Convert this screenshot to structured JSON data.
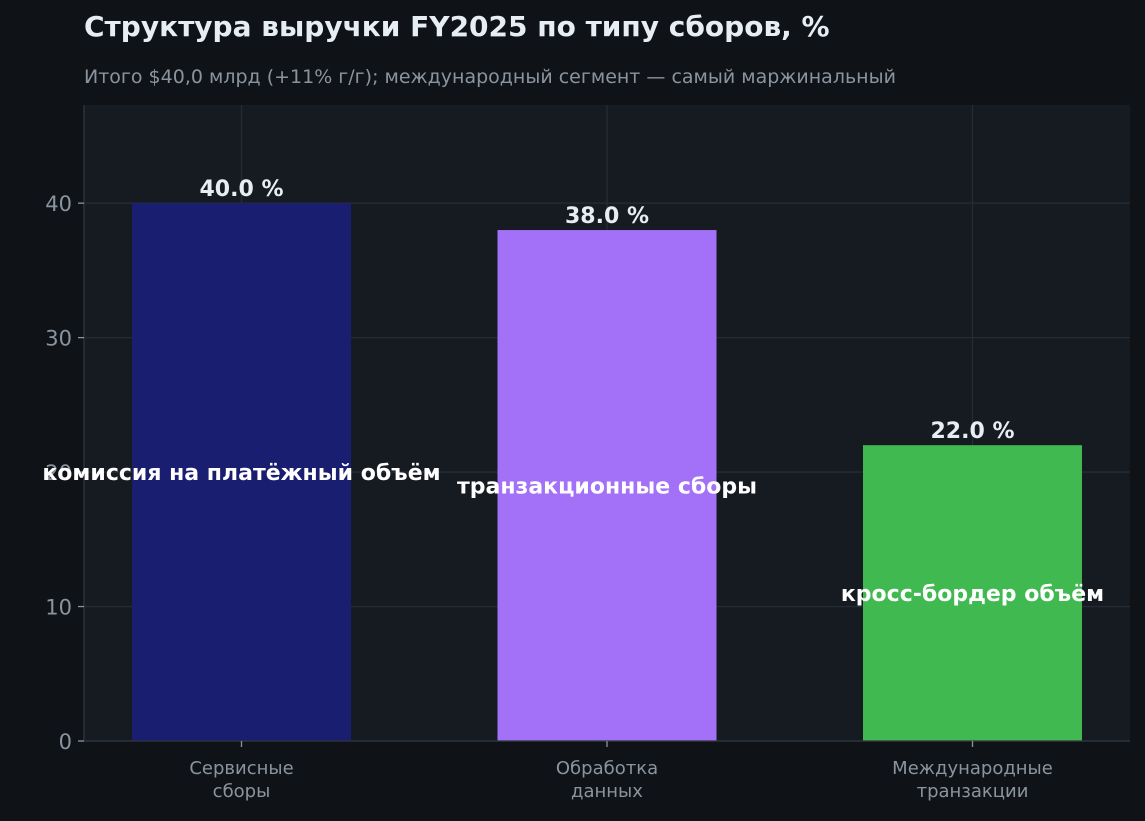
{
  "chart_data": {
    "type": "bar",
    "title": "Структура выручки FY2025 по типу сборов, %",
    "subtitle": "Итого $40,0 млрд (+11% г/г); международный сегмент — самый маржинальный",
    "categories": [
      [
        "Сервисные",
        "сборы"
      ],
      [
        "Обработка",
        "данных"
      ],
      [
        "Международные",
        "транзакции"
      ]
    ],
    "values": [
      40.0,
      38.0,
      22.0
    ],
    "value_labels": [
      "40.0 %",
      "38.0 %",
      "22.0 %"
    ],
    "inside_labels": [
      "комиссия на платёжный объём",
      "транзакционные сборы",
      "кросс-бордер объём"
    ],
    "colors": [
      "#1a1e71",
      "#a371f7",
      "#3fb950"
    ],
    "yticks": [
      0,
      10,
      20,
      30,
      40
    ],
    "ylim": [
      0,
      47.3
    ],
    "grid": true,
    "xlabel": "",
    "ylabel": ""
  }
}
